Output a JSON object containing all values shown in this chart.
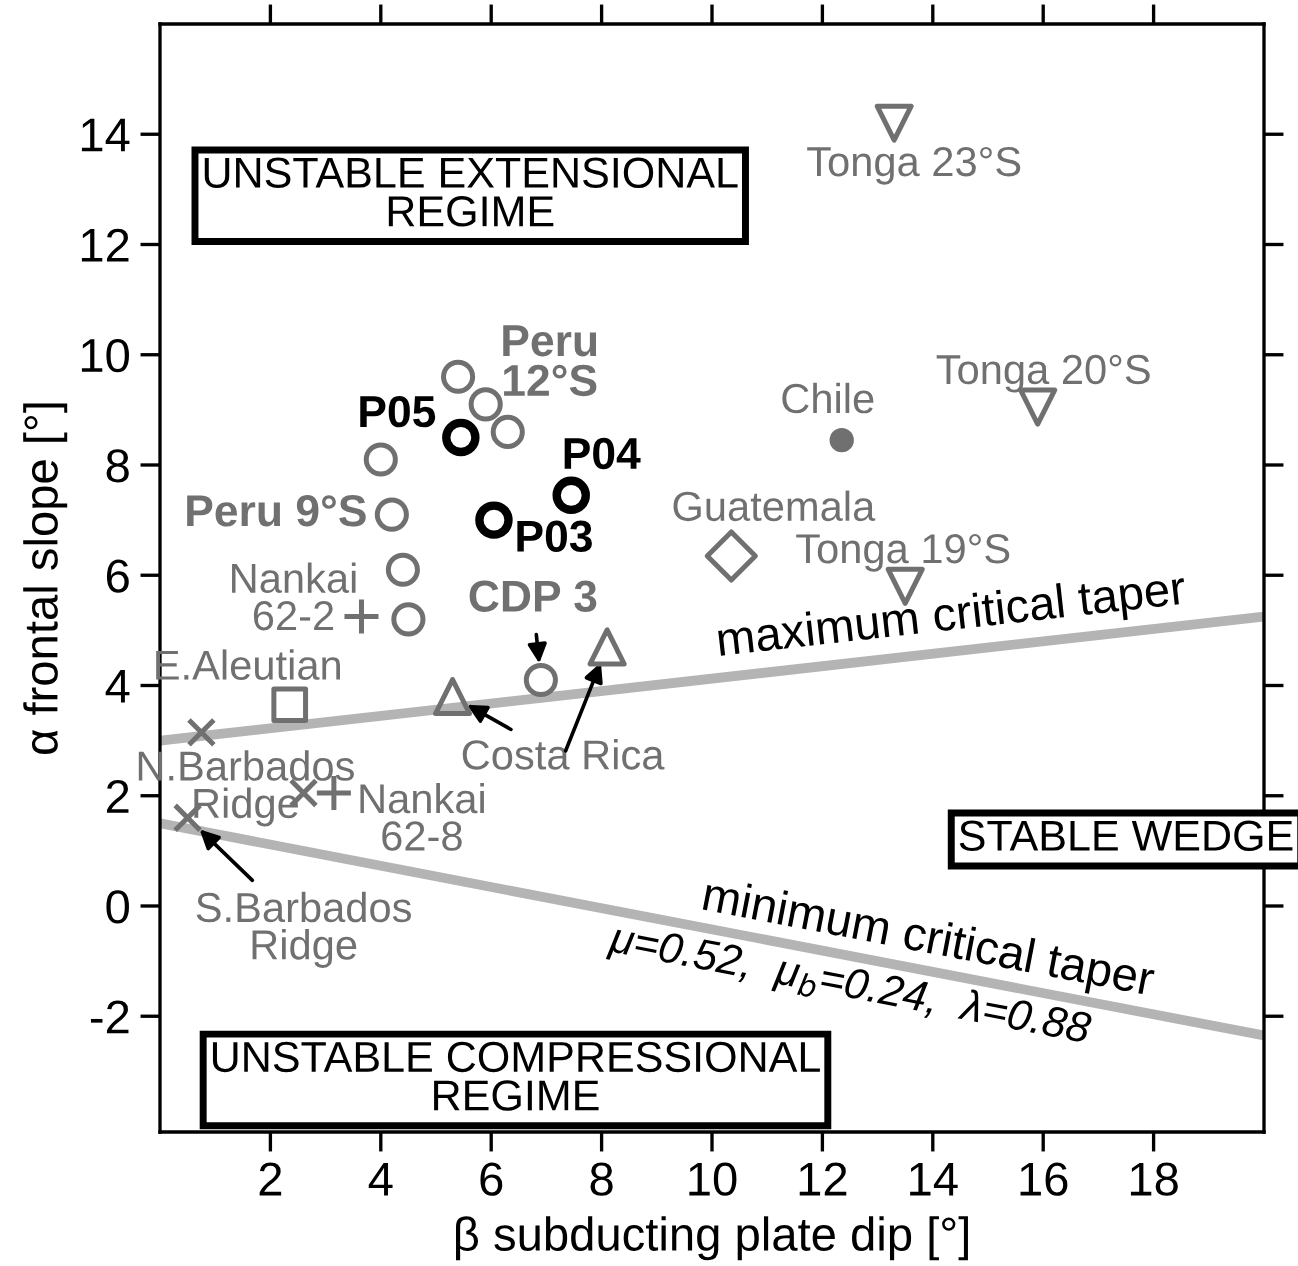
{
  "chart_data": {
    "type": "scatter",
    "xlabel": "β subducting plate dip [°]",
    "ylabel": "α frontal slope [°]",
    "xlim": [
      0,
      20
    ],
    "ylim": [
      -4.1,
      16
    ],
    "xticks": [
      2,
      4,
      6,
      8,
      10,
      12,
      14,
      16,
      18
    ],
    "yticks": [
      -2,
      0,
      2,
      4,
      6,
      8,
      10,
      12,
      14
    ],
    "grid": false,
    "series": [
      {
        "type": "line",
        "name": "maximum critical taper",
        "color": "#b4b4b4",
        "x": [
          0,
          20
        ],
        "values": [
          3.0,
          5.25
        ]
      },
      {
        "type": "line",
        "name": "minimum critical taper",
        "color": "#b4b4b4",
        "x": [
          0,
          20
        ],
        "values": [
          1.5,
          -2.35
        ]
      },
      {
        "color": "#707070",
        "marker": "circle",
        "x": [
          5.4,
          5.9,
          6.3,
          4.0,
          4.2,
          4.4,
          4.5,
          6.9
        ],
        "values": [
          9.6,
          9.1,
          8.6,
          8.1,
          7.1,
          6.1,
          5.2,
          4.1
        ]
      },
      {
        "color": "#000000",
        "marker": "circle",
        "x": [
          5.45,
          6.05,
          7.45
        ],
        "values": [
          8.5,
          7.0,
          7.45
        ]
      },
      {
        "color": "#707070",
        "marker": "triangle",
        "x": [
          5.3,
          8.1
        ],
        "values": [
          3.8,
          4.7
        ]
      },
      {
        "color": "#707070",
        "marker": "triangle_down",
        "x": [
          13.3,
          15.9,
          13.5
        ],
        "values": [
          14.2,
          9.05,
          5.8
        ]
      },
      {
        "color": "#707070",
        "marker": "dot",
        "x": [
          12.35
        ],
        "values": [
          8.45
        ]
      },
      {
        "color": "#707070",
        "marker": "diamond",
        "x": [
          10.35
        ],
        "values": [
          6.35
        ]
      },
      {
        "color": "#707070",
        "marker": "square",
        "x": [
          2.35
        ],
        "values": [
          3.65
        ]
      },
      {
        "color": "#707070",
        "marker": "cross",
        "x": [
          0.75,
          2.6,
          0.5
        ],
        "values": [
          3.15,
          2.05,
          1.6
        ]
      },
      {
        "color": "#707070",
        "marker": "plus",
        "x": [
          3.65,
          3.15
        ],
        "values": [
          5.25,
          2.05
        ]
      }
    ],
    "annotations": [
      "UNSTABLE EXTENSIONAL\nREGIME",
      "UNSTABLE COMPRESSIONAL\nREGIME",
      "STABLE WEDGE",
      "μ=0.52,  μ$_{b}$=0.24,  λ=0.88",
      {
        "text": "Peru\n12°S",
        "x": 5.9,
        "y": 9.1
      },
      {
        "text": "P05",
        "x": 5.45,
        "y": 8.5
      },
      {
        "text": "P04",
        "x": 7.45,
        "y": 7.45
      },
      {
        "text": "P03",
        "x": 6.05,
        "y": 7.0
      },
      {
        "text": "Peru 9°S",
        "x": 4.2,
        "y": 7.1
      },
      {
        "text": "Nankai\n62-2",
        "x": 3.65,
        "y": 5.25
      },
      {
        "text": "CDP 3",
        "x": 6.9,
        "y": 4.1
      },
      {
        "text": "E.Aleutian",
        "x": 2.35,
        "y": 3.65
      },
      {
        "text": "N.Barbados\nRidge",
        "x": 0.75,
        "y": 3.15
      },
      {
        "text": "Nankai\n62-8",
        "x": 3.15,
        "y": 2.05
      },
      {
        "text": "S.Barbados\nRidge",
        "x": 0.5,
        "y": 1.6
      },
      {
        "text": "Costa Rica",
        "x": 5.3,
        "y": 3.8
      },
      {
        "text": "Guatemala",
        "x": 10.35,
        "y": 6.35
      },
      {
        "text": "Chile",
        "x": 12.35,
        "y": 8.45
      },
      {
        "text": "Tonga 23°S",
        "x": 13.3,
        "y": 14.2
      },
      {
        "text": "Tonga 20°S",
        "x": 15.9,
        "y": 9.05
      },
      {
        "text": "Tonga 19°S",
        "x": 13.5,
        "y": 5.8
      }
    ]
  }
}
